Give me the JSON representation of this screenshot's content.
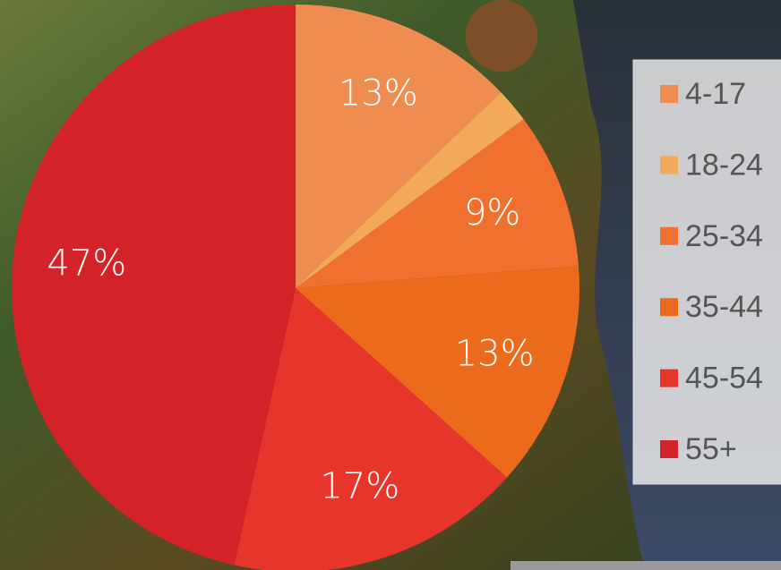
{
  "chart_data": {
    "type": "pie",
    "categories": [
      "4-17",
      "18-24",
      "25-34",
      "35-44",
      "45-54",
      "55+"
    ],
    "values": [
      13,
      2,
      9,
      13,
      17,
      47
    ],
    "value_labels": [
      "13%",
      null,
      "9%",
      "13%",
      "17%",
      "47%"
    ],
    "colors": [
      "#ef8c50",
      "#f2a95a",
      "#f07030",
      "#eb6a1c",
      "#e8352b",
      "#d42229"
    ],
    "legend": "right"
  }
}
